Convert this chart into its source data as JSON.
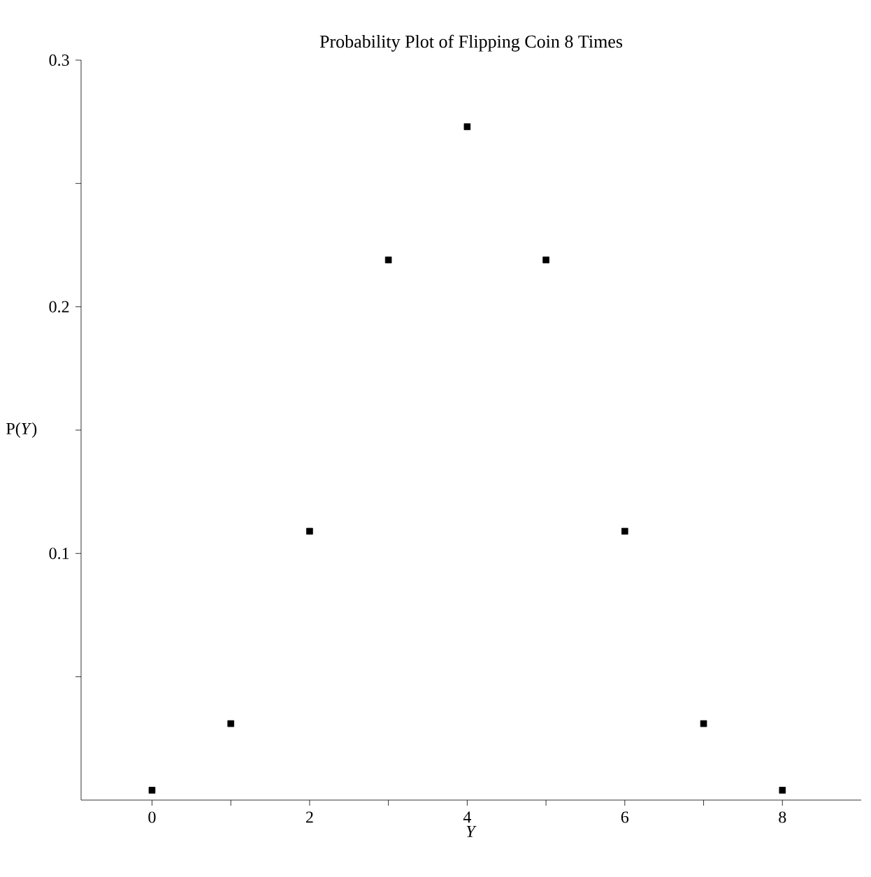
{
  "chart_data": {
    "type": "scatter",
    "title": "Probability Plot of Flipping Coin 8 Times",
    "xlabel": "*Y*",
    "ylabel": "P(*Y*)",
    "x": [
      0,
      1,
      2,
      3,
      4,
      5,
      6,
      7,
      8
    ],
    "series": [
      {
        "color": "#000000",
        "values": [
          0.004,
          0.031,
          0.109,
          0.219,
          0.273,
          0.219,
          0.109,
          0.031,
          0.004
        ]
      }
    ],
    "xlim": [
      -0.9,
      9
    ],
    "ylim": [
      0,
      0.3
    ],
    "xticks": [
      0,
      {
        "value": 1,
        "label": null
      },
      2,
      {
        "value": 3,
        "label": null
      },
      4,
      {
        "value": 5,
        "label": null
      },
      6,
      {
        "value": 7,
        "label": null
      },
      8
    ],
    "yticks": [
      {
        "value": 0.05,
        "label": null
      },
      0.1,
      {
        "value": 0.15,
        "label": null
      },
      0.2,
      {
        "value": 0.25,
        "label": null
      },
      0.3
    ],
    "marker": "square",
    "grid": false
  }
}
